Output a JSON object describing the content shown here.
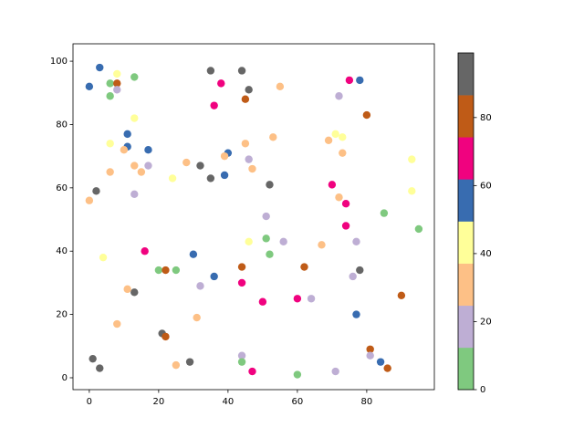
{
  "chart_data": {
    "type": "scatter",
    "x": [
      0,
      3,
      8,
      6,
      8,
      8,
      6,
      13,
      35,
      44,
      38,
      46,
      45,
      55,
      75,
      78,
      72,
      80,
      36,
      13,
      11,
      6,
      11,
      10,
      17,
      45,
      53,
      71,
      73,
      69,
      73,
      40,
      39,
      46,
      28,
      32,
      13,
      17,
      47,
      6,
      15,
      39,
      35,
      24,
      93,
      2,
      52,
      70,
      93,
      13,
      72,
      74,
      0,
      85,
      51,
      74,
      95,
      51,
      46,
      56,
      77,
      67,
      16,
      30,
      52,
      4,
      44,
      62,
      20,
      22,
      25,
      78,
      76,
      36,
      44,
      32,
      11,
      13,
      90,
      50,
      60,
      64,
      77,
      31,
      8,
      21,
      22,
      81,
      81,
      44,
      1,
      44,
      29,
      84,
      25,
      3,
      86,
      47,
      71,
      60
    ],
    "y": [
      92,
      98,
      96,
      93,
      93,
      91,
      89,
      95,
      97,
      97,
      93,
      91,
      88,
      92,
      94,
      94,
      89,
      83,
      86,
      82,
      77,
      74,
      73,
      72,
      72,
      74,
      76,
      77,
      76,
      75,
      71,
      71,
      70,
      69,
      68,
      67,
      67,
      67,
      66,
      65,
      65,
      64,
      63,
      63,
      69,
      59,
      61,
      61,
      59,
      58,
      57,
      55,
      56,
      52,
      51,
      48,
      47,
      44,
      43,
      43,
      43,
      42,
      40,
      39,
      39,
      38,
      35,
      35,
      34,
      34,
      34,
      34,
      32,
      32,
      30,
      29,
      28,
      27,
      26,
      24,
      25,
      25,
      20,
      19,
      17,
      14,
      13,
      9,
      7,
      7,
      6,
      5,
      5,
      5,
      4,
      3,
      3,
      2,
      2,
      1
    ],
    "c": [
      56,
      56,
      43,
      6,
      80,
      18,
      6,
      6,
      93,
      93,
      68,
      93,
      80,
      31,
      68,
      56,
      18,
      80,
      68,
      43,
      56,
      43,
      56,
      31,
      56,
      31,
      31,
      43,
      43,
      31,
      31,
      56,
      31,
      18,
      31,
      93,
      31,
      18,
      31,
      31,
      31,
      56,
      93,
      43,
      43,
      93,
      93,
      68,
      43,
      18,
      31,
      68,
      31,
      6,
      18,
      68,
      6,
      6,
      43,
      18,
      18,
      31,
      68,
      56,
      6,
      43,
      80,
      80,
      6,
      80,
      6,
      93,
      18,
      56,
      68,
      18,
      31,
      93,
      80,
      68,
      68,
      18,
      56,
      31,
      31,
      93,
      80,
      80,
      18,
      18,
      93,
      6,
      93,
      56,
      31,
      93,
      80,
      68,
      18,
      6
    ],
    "cmap": [
      "#7fc97f",
      "#beaed4",
      "#fdc086",
      "#ffff99",
      "#386cb0",
      "#f0027f",
      "#bf5b17",
      "#666666"
    ],
    "clim": [
      0,
      99
    ],
    "cticks": [
      0,
      20,
      40,
      60,
      80
    ],
    "xlim": [
      -4.7,
      99.5
    ],
    "xticks": [
      0,
      20,
      40,
      60,
      80
    ],
    "ylim": [
      -3.75,
      105.5
    ],
    "yticks": [
      0,
      20,
      40,
      60,
      80,
      100
    ]
  }
}
